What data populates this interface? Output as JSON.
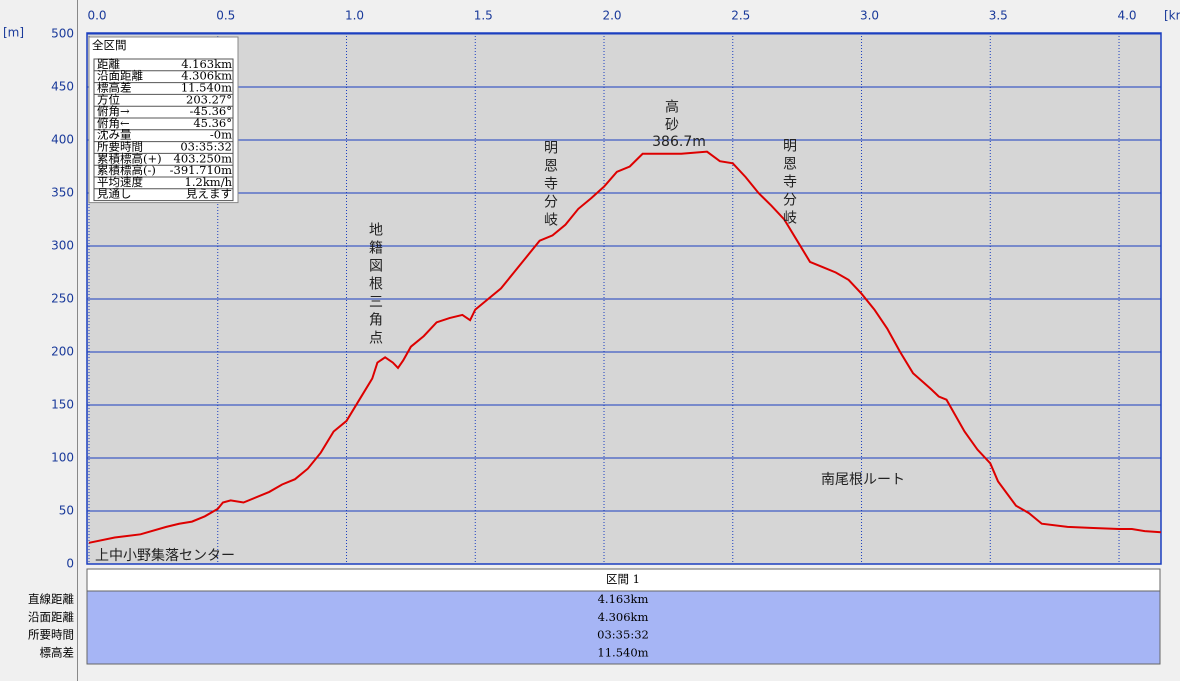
{
  "chart_data": {
    "type": "line",
    "xlabel": "[km",
    "ylabel": "[m]",
    "x": [
      0,
      0.1,
      0.2,
      0.3,
      0.35,
      0.4,
      0.45,
      0.5,
      0.52,
      0.55,
      0.6,
      0.7,
      0.75,
      0.8,
      0.85,
      0.9,
      0.95,
      1.0,
      1.05,
      1.1,
      1.12,
      1.15,
      1.18,
      1.2,
      1.22,
      1.25,
      1.3,
      1.35,
      1.4,
      1.45,
      1.48,
      1.5,
      1.55,
      1.6,
      1.65,
      1.7,
      1.75,
      1.8,
      1.85,
      1.9,
      1.95,
      2.0,
      2.05,
      2.1,
      2.15,
      2.2,
      2.3,
      2.4,
      2.45,
      2.5,
      2.55,
      2.6,
      2.65,
      2.7,
      2.75,
      2.8,
      2.85,
      2.9,
      2.95,
      3.0,
      3.05,
      3.1,
      3.15,
      3.2,
      3.27,
      3.3,
      3.33,
      3.4,
      3.45,
      3.5,
      3.53,
      3.6,
      3.65,
      3.7,
      3.8,
      3.9,
      4.0,
      4.05,
      4.1,
      4.163
    ],
    "series": [
      {
        "color": "#dd0000",
        "values": [
          20,
          25,
          28,
          35,
          38,
          40,
          45,
          52,
          58,
          60,
          58,
          68,
          75,
          80,
          90,
          105,
          125,
          135,
          155,
          175,
          190,
          195,
          190,
          185,
          192,
          205,
          215,
          228,
          232,
          235,
          230,
          240,
          250,
          260,
          275,
          290,
          305,
          310,
          320,
          335,
          345,
          356,
          370,
          375,
          387,
          387,
          387,
          389,
          380,
          378,
          365,
          350,
          338,
          325,
          305,
          285,
          280,
          275,
          268,
          255,
          240,
          222,
          200,
          180,
          165,
          158,
          155,
          125,
          108,
          95,
          78,
          55,
          48,
          38,
          35,
          34,
          33,
          33,
          31,
          30
        ]
      }
    ],
    "xlim": [
      0,
      4.163
    ],
    "ylim": [
      0,
      500
    ],
    "xticks": [
      {
        "value": 0,
        "label": "0.0"
      },
      {
        "value": 0.5,
        "label": "0.5"
      },
      {
        "value": 1,
        "label": "1.0"
      },
      {
        "value": 1.5,
        "label": "1.5"
      },
      {
        "value": 2,
        "label": "2.0"
      },
      {
        "value": 2.5,
        "label": "2.5"
      },
      {
        "value": 3,
        "label": "3.0"
      },
      {
        "value": 3.5,
        "label": "3.5"
      },
      {
        "value": 4,
        "label": "4.0"
      }
    ],
    "yticks": [
      0,
      50,
      100,
      150,
      200,
      250,
      300,
      350,
      400,
      450,
      500
    ],
    "grid": true,
    "annotations": [
      "地籍図根三角点",
      "明恩寺分岐",
      "高砂",
      "386.7m",
      "明恩寺分岐",
      "南尾根ルート",
      "上中小野集落センター"
    ]
  },
  "info_panel": {
    "title": "全区間",
    "rows": [
      [
        "距離",
        "4.163km"
      ],
      [
        "沿面距離",
        "4.306km"
      ],
      [
        "標高差",
        "11.540m"
      ],
      [
        "方位",
        "203.27°"
      ],
      [
        "俯角→",
        "-45.36°"
      ],
      [
        "俯角←",
        "45.36°"
      ],
      [
        "沈み量",
        "-0m"
      ],
      [
        "所要時間",
        "03:35:32"
      ],
      [
        "累積標高(+)",
        "403.250m"
      ],
      [
        "累積標高(-)",
        "-391.710m"
      ],
      [
        "平均速度",
        "1.2km/h"
      ],
      [
        "見通し",
        "見えます"
      ]
    ]
  },
  "summary_table": {
    "header": "区間 1",
    "rows": [
      [
        "直線距離",
        "4.163km"
      ],
      [
        "沿面距離",
        "4.306km"
      ],
      [
        "所要時間",
        "03:35:32"
      ],
      [
        "標高差",
        "11.540m"
      ]
    ]
  }
}
